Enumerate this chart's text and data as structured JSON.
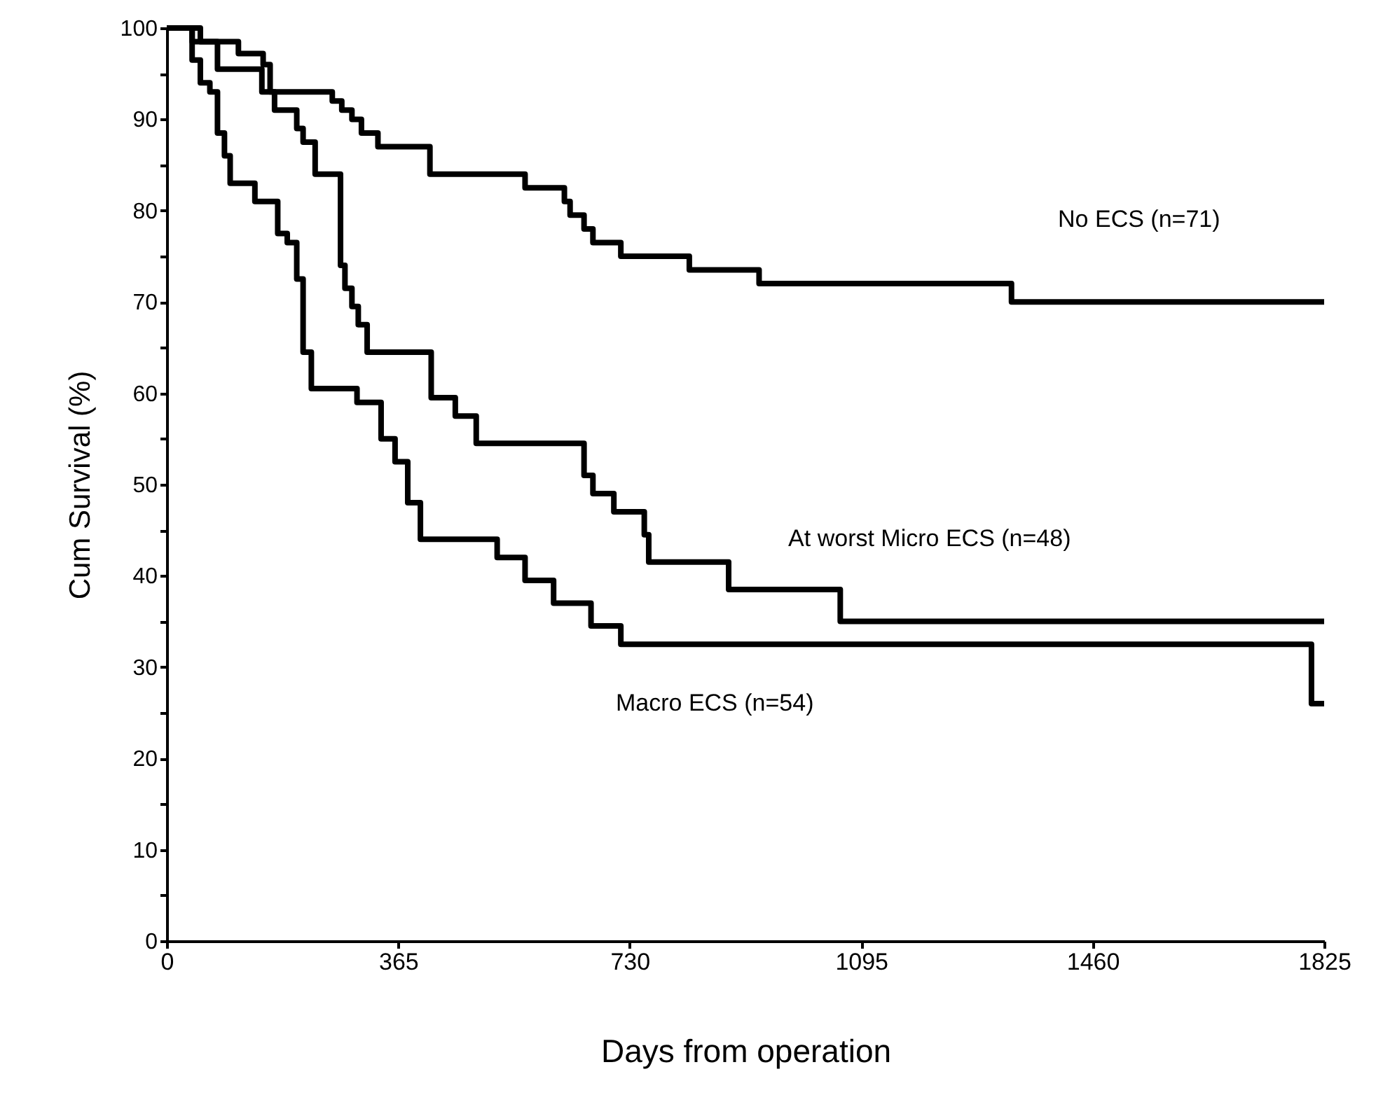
{
  "chart_data": {
    "type": "step",
    "xlabel": "Days from operation",
    "ylabel": "Cum Survival (%)",
    "xlim": [
      0,
      1825
    ],
    "xticks": [
      0,
      365,
      730,
      1095,
      1460,
      1825
    ],
    "ylim": [
      0,
      100
    ],
    "yticks": [
      0,
      {
        "value": 5,
        "label": null
      },
      10,
      {
        "value": 15,
        "label": null
      },
      20,
      {
        "value": 25,
        "label": null
      },
      30,
      {
        "value": 35,
        "label": null
      },
      40,
      {
        "value": 45,
        "label": null
      },
      50,
      {
        "value": 55,
        "label": null
      },
      60,
      {
        "value": 65,
        "label": null
      },
      70,
      {
        "value": 75,
        "label": null
      },
      80,
      {
        "value": 85,
        "label": null
      },
      90,
      {
        "value": 95,
        "label": null
      },
      100
    ],
    "series": [
      {
        "name": "No ECS (n=71)",
        "color": "#000000",
        "x": [
          0,
          53,
          113,
          152,
          163,
          261,
          276,
          292,
          307,
          333,
          415,
          565,
          627,
          636,
          658,
          672,
          716,
          824,
          934,
          1332,
          1825
        ],
        "values": [
          100,
          98.5,
          97.2,
          96,
          93,
          92,
          91,
          90,
          88.5,
          87,
          84,
          82.5,
          81,
          79.5,
          78,
          76.5,
          75,
          73.5,
          72,
          70,
          70
        ]
      },
      {
        "name": "At worst Micro ECS (n=48)",
        "color": "#000000",
        "x": [
          0,
          40,
          80,
          150,
          170,
          205,
          215,
          234,
          274,
          281,
          292,
          302,
          316,
          417,
          455,
          488,
          658,
          672,
          705,
          753,
          760,
          886,
          1062,
          1825
        ],
        "values": [
          100,
          98.5,
          95.5,
          93,
          91,
          89,
          87.5,
          84,
          74,
          71.5,
          69.5,
          67.5,
          64.5,
          59.5,
          57.5,
          54.5,
          51,
          49,
          47,
          44.5,
          41.5,
          38.5,
          35,
          35
        ]
      },
      {
        "name": "Macro ECS (n=54)",
        "color": "#000000",
        "x": [
          0,
          40,
          53,
          68,
          80,
          91,
          100,
          139,
          175,
          190,
          205,
          215,
          228,
          300,
          338,
          360,
          380,
          400,
          521,
          565,
          610,
          669,
          716,
          1805,
          1825
        ],
        "values": [
          100,
          96.5,
          94,
          93,
          88.5,
          86,
          83,
          81,
          77.5,
          76.5,
          72.5,
          64.5,
          60.5,
          59,
          55,
          52.5,
          48,
          44,
          42,
          39.5,
          37,
          34.5,
          32.5,
          26,
          26
        ]
      }
    ]
  }
}
